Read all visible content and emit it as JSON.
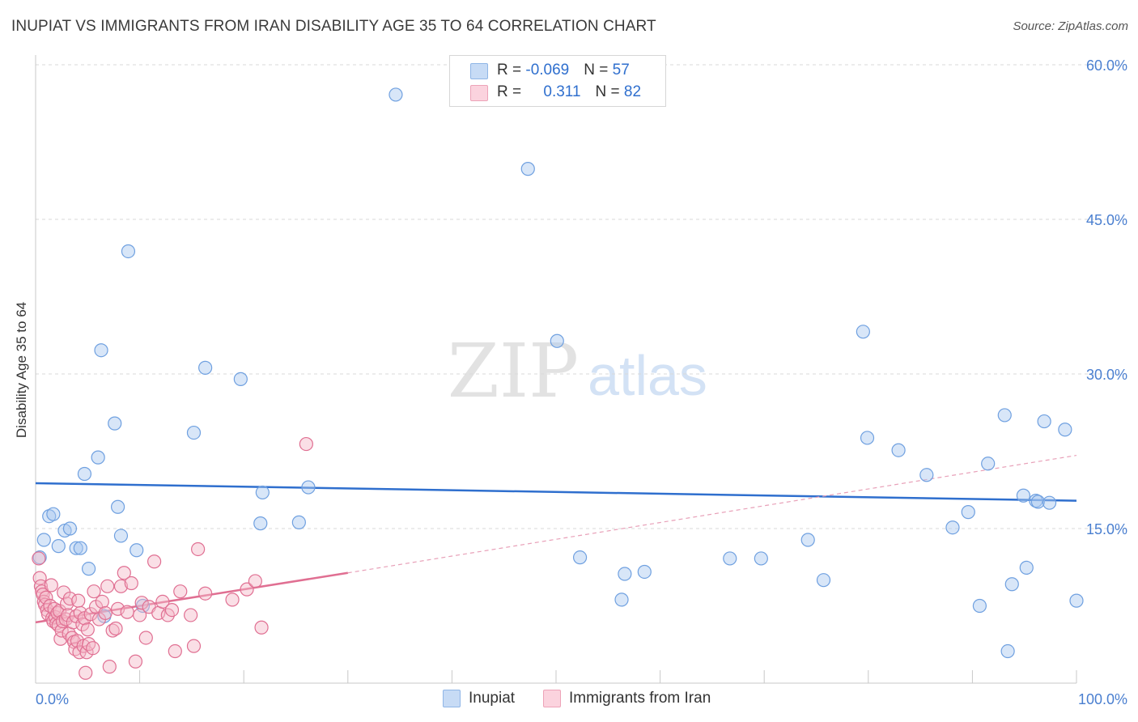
{
  "title": "INUPIAT VS IMMIGRANTS FROM IRAN DISABILITY AGE 35 TO 64 CORRELATION CHART",
  "source": "Source: ZipAtlas.com",
  "watermark": {
    "zip": "ZIP",
    "atlas": "atlas"
  },
  "legend": {
    "rows": [
      {
        "r_label": "R = ",
        "r_value": "-0.069",
        "n_label": "N = ",
        "n_value": "57",
        "color": "#a9c8f0"
      },
      {
        "r_label": "R = ",
        "r_value": "0.311",
        "n_label": "N = ",
        "n_value": "82",
        "color": "#f5b7c8"
      }
    ]
  },
  "bottom_legend": [
    {
      "label": "Inupiat",
      "color": "#a9c8f0"
    },
    {
      "label": "Immigrants from Iran",
      "color": "#f5b7c8"
    }
  ],
  "chart_data": {
    "type": "scatter",
    "ylabel": "Disability Age 35 to 64",
    "xlabel": "",
    "xlim": [
      0,
      100
    ],
    "ylim": [
      0,
      60
    ],
    "x_tick_labels": [
      "0.0%",
      "100.0%"
    ],
    "y_ticks": [
      15,
      30,
      45,
      60
    ],
    "y_tick_labels": [
      "15.0%",
      "30.0%",
      "45.0%",
      "60.0%"
    ],
    "grid": "horizontal dashed",
    "legend_position": "top-center",
    "series": [
      {
        "name": "Inupiat",
        "color": "#6fa0e0",
        "fill": "#a9c8f0",
        "trend": {
          "x": [
            0,
            100
          ],
          "y": [
            19.4,
            17.7
          ],
          "style": "solid",
          "color": "#2f6fce"
        },
        "points": [
          {
            "x": 0.4,
            "y": 12.2
          },
          {
            "x": 0.8,
            "y": 13.9
          },
          {
            "x": 1.3,
            "y": 16.2
          },
          {
            "x": 1.7,
            "y": 16.4
          },
          {
            "x": 2.2,
            "y": 13.3
          },
          {
            "x": 2.8,
            "y": 14.8
          },
          {
            "x": 3.3,
            "y": 15.0
          },
          {
            "x": 3.9,
            "y": 13.1
          },
          {
            "x": 4.3,
            "y": 13.1
          },
          {
            "x": 4.7,
            "y": 20.3
          },
          {
            "x": 5.1,
            "y": 11.1
          },
          {
            "x": 6.0,
            "y": 21.9
          },
          {
            "x": 6.3,
            "y": 32.3
          },
          {
            "x": 6.6,
            "y": 6.5
          },
          {
            "x": 7.6,
            "y": 25.2
          },
          {
            "x": 7.9,
            "y": 17.1
          },
          {
            "x": 8.2,
            "y": 14.3
          },
          {
            "x": 8.9,
            "y": 41.9
          },
          {
            "x": 9.7,
            "y": 12.9
          },
          {
            "x": 10.3,
            "y": 7.5
          },
          {
            "x": 15.2,
            "y": 24.3
          },
          {
            "x": 16.3,
            "y": 30.6
          },
          {
            "x": 19.7,
            "y": 29.5
          },
          {
            "x": 21.6,
            "y": 15.5
          },
          {
            "x": 21.8,
            "y": 18.5
          },
          {
            "x": 25.3,
            "y": 15.6
          },
          {
            "x": 26.2,
            "y": 19.0
          },
          {
            "x": 34.6,
            "y": 57.1
          },
          {
            "x": 47.3,
            "y": 49.9
          },
          {
            "x": 50.1,
            "y": 33.2
          },
          {
            "x": 52.3,
            "y": 12.2
          },
          {
            "x": 56.3,
            "y": 8.1
          },
          {
            "x": 56.6,
            "y": 10.6
          },
          {
            "x": 58.5,
            "y": 10.8
          },
          {
            "x": 66.7,
            "y": 12.1
          },
          {
            "x": 69.7,
            "y": 12.1
          },
          {
            "x": 74.2,
            "y": 13.9
          },
          {
            "x": 75.7,
            "y": 10.0
          },
          {
            "x": 79.5,
            "y": 34.1
          },
          {
            "x": 79.9,
            "y": 23.8
          },
          {
            "x": 82.9,
            "y": 22.6
          },
          {
            "x": 85.6,
            "y": 20.2
          },
          {
            "x": 88.1,
            "y": 15.1
          },
          {
            "x": 89.6,
            "y": 16.6
          },
          {
            "x": 90.7,
            "y": 7.5
          },
          {
            "x": 91.5,
            "y": 21.3
          },
          {
            "x": 93.1,
            "y": 26.0
          },
          {
            "x": 93.4,
            "y": 3.1
          },
          {
            "x": 93.8,
            "y": 9.6
          },
          {
            "x": 94.9,
            "y": 18.2
          },
          {
            "x": 95.2,
            "y": 11.2
          },
          {
            "x": 96.1,
            "y": 17.7
          },
          {
            "x": 96.3,
            "y": 17.6
          },
          {
            "x": 96.9,
            "y": 25.4
          },
          {
            "x": 97.4,
            "y": 17.5
          },
          {
            "x": 98.9,
            "y": 24.6
          },
          {
            "x": 100.0,
            "y": 8.0
          }
        ]
      },
      {
        "name": "Immigrants from Iran",
        "color": "#e06f92",
        "fill": "#f5b7c8",
        "trend": {
          "x": [
            0,
            30
          ],
          "y": [
            5.9,
            10.7
          ],
          "style": "solid",
          "color": "#e06f92"
        },
        "trend_extension": {
          "x": [
            30,
            100
          ],
          "y": [
            10.7,
            22.1
          ],
          "style": "dashed",
          "color": "#e8a0b8"
        },
        "points": [
          {
            "x": 0.3,
            "y": 12.1
          },
          {
            "x": 0.4,
            "y": 10.2
          },
          {
            "x": 0.5,
            "y": 9.4
          },
          {
            "x": 0.6,
            "y": 8.9
          },
          {
            "x": 0.7,
            "y": 8.6
          },
          {
            "x": 0.8,
            "y": 7.9
          },
          {
            "x": 0.9,
            "y": 7.6
          },
          {
            "x": 1.0,
            "y": 8.3
          },
          {
            "x": 1.1,
            "y": 7.1
          },
          {
            "x": 1.2,
            "y": 6.7
          },
          {
            "x": 1.4,
            "y": 7.5
          },
          {
            "x": 1.5,
            "y": 9.5
          },
          {
            "x": 1.6,
            "y": 6.3
          },
          {
            "x": 1.7,
            "y": 6.0
          },
          {
            "x": 1.8,
            "y": 7.2
          },
          {
            "x": 1.9,
            "y": 6.4
          },
          {
            "x": 2.0,
            "y": 5.8
          },
          {
            "x": 2.1,
            "y": 6.8
          },
          {
            "x": 2.2,
            "y": 5.6
          },
          {
            "x": 2.3,
            "y": 7.0
          },
          {
            "x": 2.4,
            "y": 4.3
          },
          {
            "x": 2.5,
            "y": 5.1
          },
          {
            "x": 2.6,
            "y": 6.0
          },
          {
            "x": 2.7,
            "y": 8.8
          },
          {
            "x": 2.9,
            "y": 6.2
          },
          {
            "x": 3.0,
            "y": 7.7
          },
          {
            "x": 3.1,
            "y": 6.6
          },
          {
            "x": 3.2,
            "y": 4.8
          },
          {
            "x": 3.3,
            "y": 8.2
          },
          {
            "x": 3.5,
            "y": 4.4
          },
          {
            "x": 3.6,
            "y": 5.9
          },
          {
            "x": 3.7,
            "y": 4.0
          },
          {
            "x": 3.8,
            "y": 3.3
          },
          {
            "x": 3.9,
            "y": 6.5
          },
          {
            "x": 4.0,
            "y": 4.1
          },
          {
            "x": 4.1,
            "y": 8.0
          },
          {
            "x": 4.2,
            "y": 3.0
          },
          {
            "x": 4.3,
            "y": 6.8
          },
          {
            "x": 4.5,
            "y": 5.7
          },
          {
            "x": 4.6,
            "y": 3.6
          },
          {
            "x": 4.7,
            "y": 6.3
          },
          {
            "x": 4.8,
            "y": 1.0
          },
          {
            "x": 4.9,
            "y": 3.0
          },
          {
            "x": 5.0,
            "y": 5.2
          },
          {
            "x": 5.1,
            "y": 3.8
          },
          {
            "x": 5.3,
            "y": 6.7
          },
          {
            "x": 5.5,
            "y": 3.4
          },
          {
            "x": 5.6,
            "y": 8.9
          },
          {
            "x": 5.8,
            "y": 7.4
          },
          {
            "x": 6.1,
            "y": 6.2
          },
          {
            "x": 6.4,
            "y": 7.9
          },
          {
            "x": 6.7,
            "y": 6.8
          },
          {
            "x": 6.9,
            "y": 9.4
          },
          {
            "x": 7.1,
            "y": 1.6
          },
          {
            "x": 7.4,
            "y": 5.1
          },
          {
            "x": 7.7,
            "y": 5.3
          },
          {
            "x": 7.9,
            "y": 7.2
          },
          {
            "x": 8.2,
            "y": 9.4
          },
          {
            "x": 8.5,
            "y": 10.7
          },
          {
            "x": 8.8,
            "y": 6.9
          },
          {
            "x": 9.2,
            "y": 9.7
          },
          {
            "x": 9.6,
            "y": 2.1
          },
          {
            "x": 10.0,
            "y": 6.6
          },
          {
            "x": 10.2,
            "y": 7.8
          },
          {
            "x": 10.6,
            "y": 4.4
          },
          {
            "x": 10.9,
            "y": 7.4
          },
          {
            "x": 11.4,
            "y": 11.8
          },
          {
            "x": 11.8,
            "y": 6.8
          },
          {
            "x": 12.2,
            "y": 7.9
          },
          {
            "x": 12.7,
            "y": 6.6
          },
          {
            "x": 13.1,
            "y": 7.1
          },
          {
            "x": 13.4,
            "y": 3.1
          },
          {
            "x": 13.9,
            "y": 8.9
          },
          {
            "x": 14.9,
            "y": 6.6
          },
          {
            "x": 15.2,
            "y": 3.6
          },
          {
            "x": 15.6,
            "y": 13.0
          },
          {
            "x": 16.3,
            "y": 8.7
          },
          {
            "x": 18.9,
            "y": 8.1
          },
          {
            "x": 20.3,
            "y": 9.1
          },
          {
            "x": 21.1,
            "y": 9.9
          },
          {
            "x": 21.7,
            "y": 5.4
          },
          {
            "x": 26.0,
            "y": 23.2
          }
        ]
      }
    ]
  }
}
